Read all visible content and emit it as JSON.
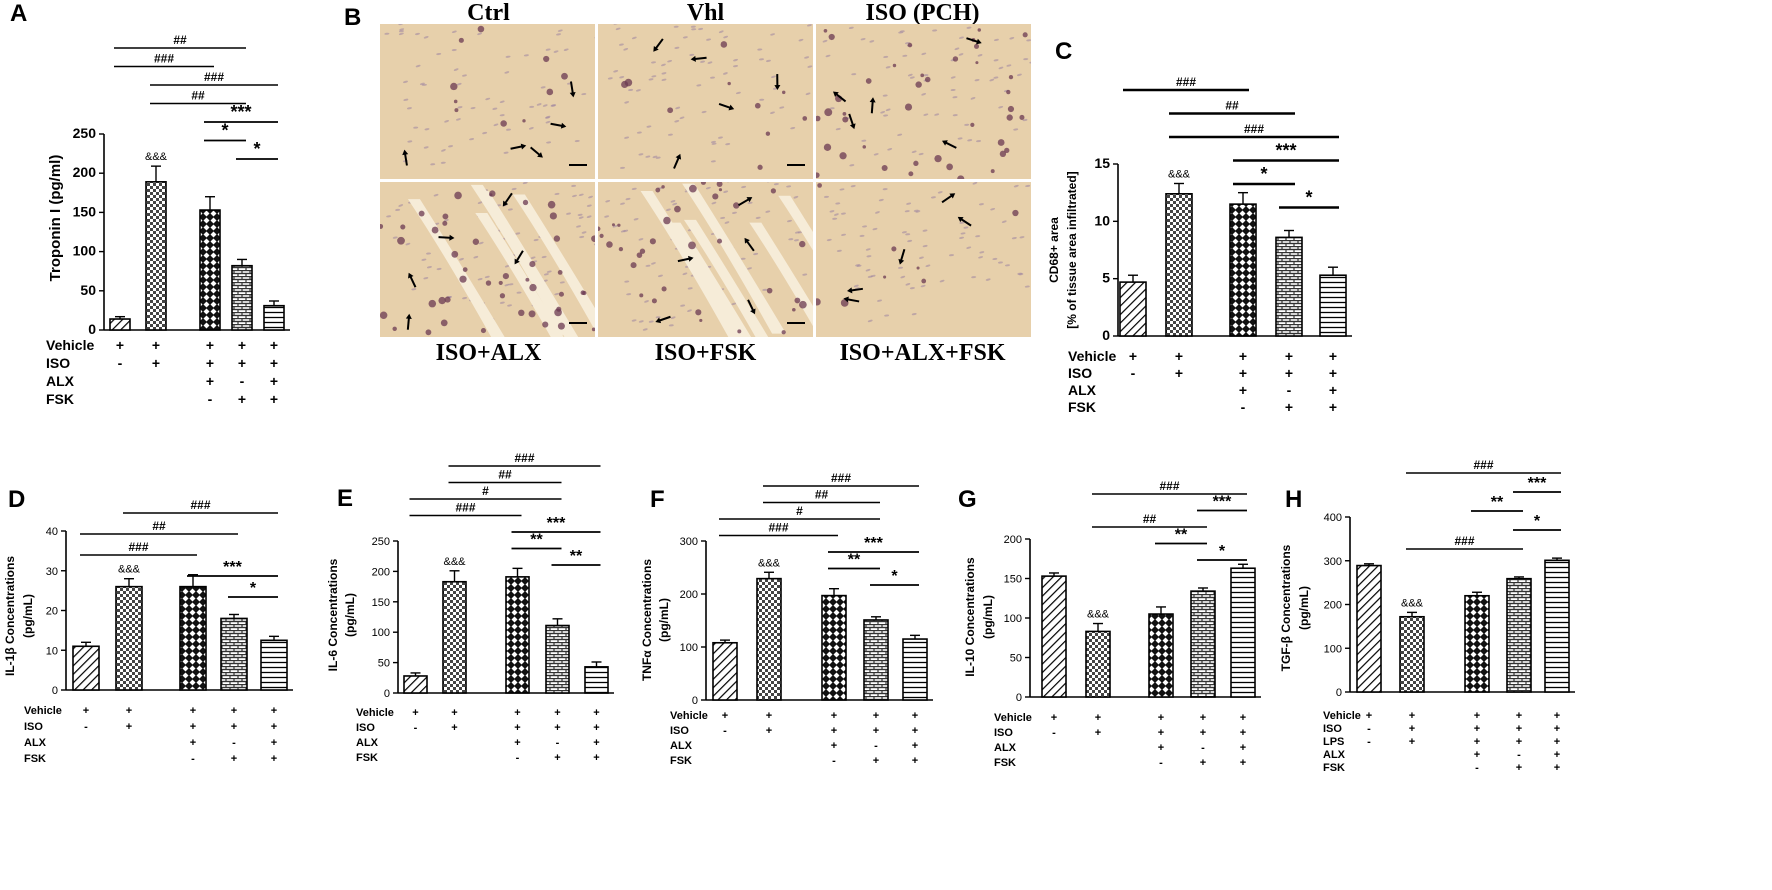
{
  "panels": {
    "A": "A",
    "B": "B",
    "C": "C",
    "D": "D",
    "E": "E",
    "F": "F",
    "G": "G",
    "H": "H"
  },
  "micrographs": {
    "top_titles": [
      "Ctrl",
      "Vhl",
      "ISO (PCH)"
    ],
    "bottom_titles": [
      "ISO+ALX",
      "ISO+FSK",
      "ISO+ALX+FSK"
    ]
  },
  "colors": {
    "bar_fill": "#ffffff",
    "stroke": "#000000",
    "tissue": "#e7d0ab",
    "stain": "#6b3a52"
  },
  "chart_data": [
    {
      "id": "A",
      "type": "bar",
      "ylabel": "Troponin I (pg/ml)",
      "ylim": [
        0,
        250
      ],
      "yticks": [
        0,
        50,
        100,
        150,
        200,
        250
      ],
      "values": [
        14,
        189,
        153,
        82,
        31
      ],
      "errors": [
        3,
        20,
        17,
        8,
        6
      ],
      "patterns": [
        "diag",
        "check",
        "xcross",
        "brick",
        "hstripe"
      ],
      "flag_over": "&&&",
      "treatments": [
        {
          "name": "Vehicle",
          "signs": [
            "+",
            "+",
            "+",
            "+",
            "+"
          ]
        },
        {
          "name": "ISO",
          "signs": [
            "-",
            "+",
            "+",
            "+",
            "+"
          ]
        },
        {
          "name": "ALX",
          "signs": [
            "",
            "",
            "+",
            "-",
            "+"
          ]
        },
        {
          "name": "FSK",
          "signs": [
            "",
            "",
            "-",
            "+",
            "+"
          ]
        }
      ],
      "brackets": [
        {
          "from": 0,
          "to": 3,
          "label": "##",
          "style": "hash"
        },
        {
          "from": 0,
          "to": 2,
          "label": "###",
          "style": "hash"
        },
        {
          "from": 1,
          "to": 4,
          "label": "###",
          "style": "hash"
        },
        {
          "from": 1,
          "to": 3,
          "label": "##",
          "style": "hash"
        },
        {
          "from": 2,
          "to": 4,
          "label": "***",
          "style": "star"
        },
        {
          "from": 2,
          "to": 3,
          "label": "*",
          "style": "star"
        },
        {
          "from": 3,
          "to": 4,
          "label": "*",
          "style": "star"
        }
      ]
    },
    {
      "id": "C",
      "type": "bar",
      "ylabel": "CD68+ area",
      "ylabel2": "[% of tissue area infiltrated]",
      "ylim": [
        0,
        15
      ],
      "yticks": [
        0,
        5,
        10,
        15
      ],
      "values": [
        4.7,
        12.4,
        11.5,
        8.6,
        5.3
      ],
      "errors": [
        0.6,
        0.9,
        1.0,
        0.6,
        0.7
      ],
      "patterns": [
        "diag",
        "check",
        "xcross",
        "brick",
        "hstripe"
      ],
      "flag_over": "&&&",
      "treatments": [
        {
          "name": "Vehicle",
          "signs": [
            "+",
            "+",
            "+",
            "+",
            "+"
          ]
        },
        {
          "name": "ISO",
          "signs": [
            "-",
            "+",
            "+",
            "+",
            "+"
          ]
        },
        {
          "name": "ALX",
          "signs": [
            "",
            "",
            "+",
            "-",
            "+"
          ]
        },
        {
          "name": "FSK",
          "signs": [
            "",
            "",
            "-",
            "+",
            "+"
          ]
        }
      ],
      "brackets": [
        {
          "from": 0,
          "to": 2,
          "label": "###",
          "style": "thick"
        },
        {
          "from": 1,
          "to": 3,
          "label": "##",
          "style": "thick"
        },
        {
          "from": 1,
          "to": 4,
          "label": "###",
          "style": "thick"
        },
        {
          "from": 2,
          "to": 4,
          "label": "***",
          "style": "thick"
        },
        {
          "from": 2,
          "to": 3,
          "label": "*",
          "style": "thick"
        },
        {
          "from": 3,
          "to": 4,
          "label": "*",
          "style": "thick"
        }
      ]
    },
    {
      "id": "D",
      "type": "bar",
      "ylabel": "IL-1β Concentrations",
      "ylabel2": "(pg/mL)",
      "ylim": [
        0,
        40
      ],
      "yticks": [
        0,
        10,
        20,
        30,
        40
      ],
      "values": [
        11,
        26,
        26,
        18,
        12.5
      ],
      "errors": [
        1,
        2,
        3,
        1,
        1
      ],
      "patterns": [
        "diag",
        "check",
        "xcross",
        "brick",
        "hstripe"
      ],
      "flag_over": "&&&",
      "treatments": [
        {
          "name": "Vehicle",
          "signs": [
            "+",
            "+",
            "+",
            "+",
            "+"
          ]
        },
        {
          "name": "ISO",
          "signs": [
            "-",
            "+",
            "+",
            "+",
            "+"
          ]
        },
        {
          "name": "ALX",
          "signs": [
            "",
            "",
            "+",
            "-",
            "+"
          ]
        },
        {
          "name": "FSK",
          "signs": [
            "",
            "",
            "-",
            "+",
            "+"
          ]
        }
      ],
      "brackets": [
        {
          "from": 1,
          "to": 4,
          "label": "###",
          "style": "hash"
        },
        {
          "from": 0,
          "to": 3,
          "label": "##",
          "style": "hash"
        },
        {
          "from": 0,
          "to": 2,
          "label": "###",
          "style": "hash"
        },
        {
          "from": 2,
          "to": 4,
          "label": "***",
          "style": "star"
        },
        {
          "from": 3,
          "to": 4,
          "label": "*",
          "style": "star"
        }
      ]
    },
    {
      "id": "E",
      "type": "bar",
      "ylabel": "IL-6 Concentrations",
      "ylabel2": "(pg/mL)",
      "ylim": [
        0,
        250
      ],
      "yticks": [
        0,
        50,
        100,
        150,
        200,
        250
      ],
      "values": [
        28,
        183,
        191,
        111,
        43
      ],
      "errors": [
        5,
        18,
        14,
        11,
        8
      ],
      "patterns": [
        "diag",
        "check",
        "xcross",
        "brick",
        "hstripe"
      ],
      "flag_over": "&&&",
      "treatments": [
        {
          "name": "Vehicle",
          "signs": [
            "+",
            "+",
            "+",
            "+",
            "+"
          ]
        },
        {
          "name": "ISO",
          "signs": [
            "-",
            "+",
            "+",
            "+",
            "+"
          ]
        },
        {
          "name": "ALX",
          "signs": [
            "",
            "",
            "+",
            "-",
            "+"
          ]
        },
        {
          "name": "FSK",
          "signs": [
            "",
            "",
            "-",
            "+",
            "+"
          ]
        }
      ],
      "brackets": [
        {
          "from": 1,
          "to": 4,
          "label": "###",
          "style": "hash"
        },
        {
          "from": 1,
          "to": 3,
          "label": "##",
          "style": "hash"
        },
        {
          "from": 0,
          "to": 3,
          "label": "#",
          "style": "hash"
        },
        {
          "from": 0,
          "to": 2,
          "label": "###",
          "style": "hash"
        },
        {
          "from": 2,
          "to": 4,
          "label": "***",
          "style": "star"
        },
        {
          "from": 2,
          "to": 3,
          "label": "**",
          "style": "star"
        },
        {
          "from": 3,
          "to": 4,
          "label": "**",
          "style": "star"
        }
      ]
    },
    {
      "id": "F",
      "type": "bar",
      "ylabel": "TNFα Concentrations",
      "ylabel2": "(pg/mL)",
      "ylim": [
        0,
        300
      ],
      "yticks": [
        0,
        100,
        200,
        300
      ],
      "values": [
        108,
        229,
        197,
        151,
        115
      ],
      "errors": [
        5,
        12,
        13,
        6,
        7
      ],
      "patterns": [
        "diag",
        "check",
        "xcross",
        "brick",
        "hstripe"
      ],
      "flag_over": "&&&",
      "treatments": [
        {
          "name": "Vehicle",
          "signs": [
            "+",
            "+",
            "+",
            "+",
            "+"
          ]
        },
        {
          "name": "ISO",
          "signs": [
            "-",
            "+",
            "+",
            "+",
            "+"
          ]
        },
        {
          "name": "ALX",
          "signs": [
            "",
            "",
            "+",
            "-",
            "+"
          ]
        },
        {
          "name": "FSK",
          "signs": [
            "",
            "",
            "-",
            "+",
            "+"
          ]
        }
      ],
      "brackets": [
        {
          "from": 1,
          "to": 4,
          "label": "###",
          "style": "hash"
        },
        {
          "from": 1,
          "to": 3,
          "label": "##",
          "style": "hash"
        },
        {
          "from": 0,
          "to": 3,
          "label": "#",
          "style": "hash"
        },
        {
          "from": 0,
          "to": 2,
          "label": "###",
          "style": "hash"
        },
        {
          "from": 2,
          "to": 4,
          "label": "***",
          "style": "star"
        },
        {
          "from": 2,
          "to": 3,
          "label": "**",
          "style": "star"
        },
        {
          "from": 3,
          "to": 4,
          "label": "*",
          "style": "star"
        }
      ]
    },
    {
      "id": "G",
      "type": "bar",
      "ylabel": "IL-10 Concentrations",
      "ylabel2": "(pg/mL)",
      "ylim": [
        0,
        200
      ],
      "yticks": [
        0,
        50,
        100,
        150,
        200
      ],
      "values": [
        153,
        83,
        105,
        134,
        163
      ],
      "errors": [
        4,
        10,
        9,
        4,
        5
      ],
      "patterns": [
        "diag",
        "check",
        "xcross",
        "brick",
        "hstripe"
      ],
      "flag_over": "&&&",
      "treatments": [
        {
          "name": "Vehicle",
          "signs": [
            "+",
            "+",
            "+",
            "+",
            "+"
          ]
        },
        {
          "name": "ISO",
          "signs": [
            "-",
            "+",
            "+",
            "+",
            "+"
          ]
        },
        {
          "name": "ALX",
          "signs": [
            "",
            "",
            "+",
            "-",
            "+"
          ]
        },
        {
          "name": "FSK",
          "signs": [
            "",
            "",
            "-",
            "+",
            "+"
          ]
        }
      ],
      "brackets": [
        {
          "from": 1,
          "to": 4,
          "label": "###",
          "style": "hash"
        },
        {
          "from": 3,
          "to": 4,
          "label": "***",
          "style": "star"
        },
        {
          "from": 1,
          "to": 3,
          "label": "##",
          "style": "hash"
        },
        {
          "from": 2,
          "to": 3,
          "label": "**",
          "style": "star"
        },
        {
          "from": 3,
          "to": 4,
          "label": "*",
          "style": "star"
        }
      ]
    },
    {
      "id": "H",
      "type": "bar",
      "ylabel": "TGF-β Concentrations",
      "ylabel2": "(pg/mL)",
      "ylim": [
        0,
        400
      ],
      "yticks": [
        0,
        100,
        200,
        300,
        400
      ],
      "values": [
        289,
        172,
        220,
        259,
        301
      ],
      "errors": [
        4,
        10,
        8,
        4,
        5
      ],
      "patterns": [
        "diag",
        "check",
        "xcross",
        "brick",
        "hstripe"
      ],
      "flag_over": "&&&",
      "treatments": [
        {
          "name": "Vehicle",
          "signs": [
            "+",
            "+",
            "+",
            "+",
            "+"
          ]
        },
        {
          "name": "ISO",
          "signs": [
            "-",
            "+",
            "+",
            "+",
            "+"
          ]
        },
        {
          "name": "LPS",
          "signs": [
            "-",
            "+",
            "+",
            "+",
            "+"
          ]
        },
        {
          "name": "ALX",
          "signs": [
            "",
            "",
            "+",
            "-",
            "+"
          ]
        },
        {
          "name": "FSK",
          "signs": [
            "",
            "",
            "-",
            "+",
            "+"
          ]
        }
      ],
      "brackets": [
        {
          "from": 1,
          "to": 4,
          "label": "###",
          "style": "hash"
        },
        {
          "from": 3,
          "to": 4,
          "label": "***",
          "style": "star"
        },
        {
          "from": 2,
          "to": 3,
          "label": "**",
          "style": "star"
        },
        {
          "from": 3,
          "to": 4,
          "label": "*",
          "style": "star"
        },
        {
          "from": 1,
          "to": 3,
          "label": "###",
          "style": "hash"
        }
      ]
    }
  ]
}
